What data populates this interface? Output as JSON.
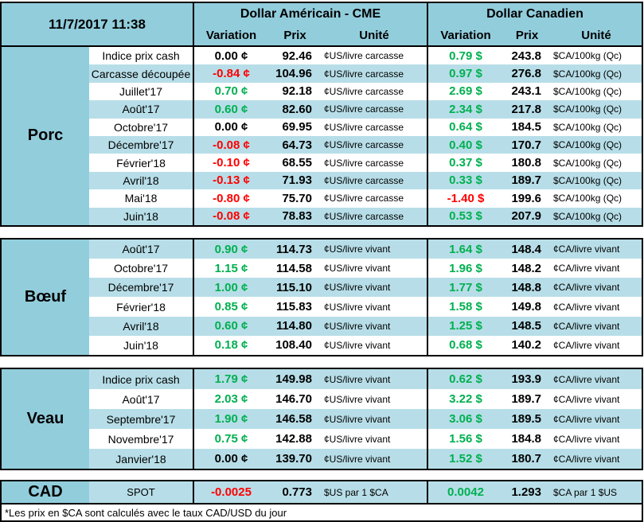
{
  "header": {
    "timestamp": "11/7/2017 11:38",
    "usd_title": "Dollar Américain - CME",
    "cad_title": "Dollar Canadien",
    "cols": {
      "variation": "Variation",
      "prix": "Prix",
      "unite": "Unité"
    }
  },
  "colors": {
    "positive_green": "#00B050",
    "negative_red": "#FF0000",
    "header_blue": "#92CDDC",
    "row_alt_blue": "#B7DEE8"
  },
  "sections": [
    {
      "label": "Porc",
      "alt_start": "white",
      "rows": [
        {
          "label": "Indice prix cash",
          "us_var": "0.00 ¢",
          "us_tone": "flat",
          "us_prix": "92.46",
          "us_unit": "¢US/livre carcasse",
          "ca_var": "0.79 $",
          "ca_tone": "up",
          "ca_prix": "243.8",
          "ca_unit": "$CA/100kg (Qc)"
        },
        {
          "label": "Carcasse découpée",
          "us_var": "-0.84 ¢",
          "us_tone": "down",
          "us_prix": "104.96",
          "us_unit": "¢US/livre carcasse",
          "ca_var": "0.97 $",
          "ca_tone": "up",
          "ca_prix": "276.8",
          "ca_unit": "$CA/100kg (Qc)"
        },
        {
          "label": "Juillet'17",
          "us_var": "0.70 ¢",
          "us_tone": "up",
          "us_prix": "92.18",
          "us_unit": "¢US/livre carcasse",
          "ca_var": "2.69 $",
          "ca_tone": "up",
          "ca_prix": "243.1",
          "ca_unit": "$CA/100kg (Qc)"
        },
        {
          "label": "Août'17",
          "us_var": "0.60 ¢",
          "us_tone": "up",
          "us_prix": "82.60",
          "us_unit": "¢US/livre carcasse",
          "ca_var": "2.34 $",
          "ca_tone": "up",
          "ca_prix": "217.8",
          "ca_unit": "$CA/100kg (Qc)"
        },
        {
          "label": "Octobre'17",
          "us_var": "0.00 ¢",
          "us_tone": "flat",
          "us_prix": "69.95",
          "us_unit": "¢US/livre carcasse",
          "ca_var": "0.64 $",
          "ca_tone": "up",
          "ca_prix": "184.5",
          "ca_unit": "$CA/100kg (Qc)"
        },
        {
          "label": "Décembre'17",
          "us_var": "-0.08 ¢",
          "us_tone": "down",
          "us_prix": "64.73",
          "us_unit": "¢US/livre carcasse",
          "ca_var": "0.40 $",
          "ca_tone": "up",
          "ca_prix": "170.7",
          "ca_unit": "$CA/100kg (Qc)"
        },
        {
          "label": "Février'18",
          "us_var": "-0.10 ¢",
          "us_tone": "down",
          "us_prix": "68.55",
          "us_unit": "¢US/livre carcasse",
          "ca_var": "0.37 $",
          "ca_tone": "up",
          "ca_prix": "180.8",
          "ca_unit": "$CA/100kg (Qc)"
        },
        {
          "label": "Avril'18",
          "us_var": "-0.13 ¢",
          "us_tone": "down",
          "us_prix": "71.93",
          "us_unit": "¢US/livre carcasse",
          "ca_var": "0.33 $",
          "ca_tone": "up",
          "ca_prix": "189.7",
          "ca_unit": "$CA/100kg (Qc)"
        },
        {
          "label": "Mai'18",
          "us_var": "-0.80 ¢",
          "us_tone": "down",
          "us_prix": "75.70",
          "us_unit": "¢US/livre carcasse",
          "ca_var": "-1.40 $",
          "ca_tone": "down",
          "ca_prix": "199.6",
          "ca_unit": "$CA/100kg (Qc)"
        },
        {
          "label": "Juin'18",
          "us_var": "-0.08 ¢",
          "us_tone": "down",
          "us_prix": "78.83",
          "us_unit": "¢US/livre carcasse",
          "ca_var": "0.53 $",
          "ca_tone": "up",
          "ca_prix": "207.9",
          "ca_unit": "$CA/100kg (Qc)"
        }
      ]
    },
    {
      "label": "Bœuf",
      "alt_start": "blue",
      "rows": [
        {
          "label": "Août'17",
          "us_var": "0.90 ¢",
          "us_tone": "up",
          "us_prix": "114.73",
          "us_unit": "¢US/livre vivant",
          "ca_var": "1.64 $",
          "ca_tone": "up",
          "ca_prix": "148.4",
          "ca_unit": "¢CA/livre vivant"
        },
        {
          "label": "Octobre'17",
          "us_var": "1.15 ¢",
          "us_tone": "up",
          "us_prix": "114.58",
          "us_unit": "¢US/livre vivant",
          "ca_var": "1.96 $",
          "ca_tone": "up",
          "ca_prix": "148.2",
          "ca_unit": "¢CA/livre vivant"
        },
        {
          "label": "Décembre'17",
          "us_var": "1.00 ¢",
          "us_tone": "up",
          "us_prix": "115.10",
          "us_unit": "¢US/livre vivant",
          "ca_var": "1.77 $",
          "ca_tone": "up",
          "ca_prix": "148.8",
          "ca_unit": "¢CA/livre vivant"
        },
        {
          "label": "Février'18",
          "us_var": "0.85 ¢",
          "us_tone": "up",
          "us_prix": "115.83",
          "us_unit": "¢US/livre vivant",
          "ca_var": "1.58 $",
          "ca_tone": "up",
          "ca_prix": "149.8",
          "ca_unit": "¢CA/livre vivant"
        },
        {
          "label": "Avril'18",
          "us_var": "0.60 ¢",
          "us_tone": "up",
          "us_prix": "114.80",
          "us_unit": "¢US/livre vivant",
          "ca_var": "1.25 $",
          "ca_tone": "up",
          "ca_prix": "148.5",
          "ca_unit": "¢CA/livre vivant"
        },
        {
          "label": "Juin'18",
          "us_var": "0.18 ¢",
          "us_tone": "up",
          "us_prix": "108.40",
          "us_unit": "¢US/livre vivant",
          "ca_var": "0.68 $",
          "ca_tone": "up",
          "ca_prix": "140.2",
          "ca_unit": "¢CA/livre vivant"
        }
      ]
    },
    {
      "label": "Veau",
      "alt_start": "blue",
      "rows": [
        {
          "label": "Indice prix cash",
          "us_var": "1.79 ¢",
          "us_tone": "up",
          "us_prix": "149.98",
          "us_unit": "¢US/livre vivant",
          "ca_var": "0.62 $",
          "ca_tone": "up",
          "ca_prix": "193.9",
          "ca_unit": "¢CA/livre vivant"
        },
        {
          "label": "Août'17",
          "us_var": "2.03 ¢",
          "us_tone": "up",
          "us_prix": "146.70",
          "us_unit": "¢US/livre vivant",
          "ca_var": "3.22 $",
          "ca_tone": "up",
          "ca_prix": "189.7",
          "ca_unit": "¢CA/livre vivant"
        },
        {
          "label": "Septembre'17",
          "us_var": "1.90 ¢",
          "us_tone": "up",
          "us_prix": "146.58",
          "us_unit": "¢US/livre vivant",
          "ca_var": "3.06 $",
          "ca_tone": "up",
          "ca_prix": "189.5",
          "ca_unit": "¢CA/livre vivant"
        },
        {
          "label": "Novembre'17",
          "us_var": "0.75 ¢",
          "us_tone": "up",
          "us_prix": "142.88",
          "us_unit": "¢US/livre vivant",
          "ca_var": "1.56 $",
          "ca_tone": "up",
          "ca_prix": "184.8",
          "ca_unit": "¢CA/livre vivant"
        },
        {
          "label": "Janvier'18",
          "us_var": "0.00 ¢",
          "us_tone": "flat",
          "us_prix": "139.70",
          "us_unit": "¢US/livre vivant",
          "ca_var": "1.52 $",
          "ca_tone": "up",
          "ca_prix": "180.7",
          "ca_unit": "¢CA/livre vivant"
        }
      ]
    }
  ],
  "cad_row": {
    "label": "CAD",
    "sublabel": "SPOT",
    "us_var": "-0.0025",
    "us_tone": "down",
    "us_prix": "0.773",
    "us_unit": "$US par 1 $CA",
    "ca_var": "0.0042",
    "ca_tone": "up",
    "ca_prix": "1.293",
    "ca_unit": "$CA par 1 $US"
  },
  "footnote": "*Les  prix en $CA sont calculés avec le taux CAD/USD du jour"
}
